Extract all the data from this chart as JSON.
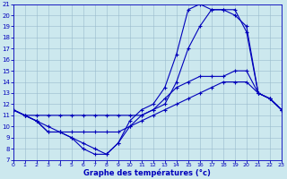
{
  "title": "Graphe des températures (°c)",
  "bg_color": "#cce8ee",
  "line_color": "#0000bb",
  "grid_color": "#99bbcc",
  "xlim": [
    0,
    23
  ],
  "ylim": [
    7,
    21
  ],
  "xticks": [
    0,
    1,
    2,
    3,
    4,
    5,
    6,
    7,
    8,
    9,
    10,
    11,
    12,
    13,
    14,
    15,
    16,
    17,
    18,
    19,
    20,
    21,
    22,
    23
  ],
  "yticks": [
    7,
    8,
    9,
    10,
    11,
    12,
    13,
    14,
    15,
    16,
    17,
    18,
    19,
    20,
    21
  ],
  "s1_x": [
    0,
    1,
    2,
    3,
    4,
    5,
    6,
    7,
    8,
    9,
    10,
    11,
    12,
    13,
    14,
    15,
    16,
    17,
    18,
    19,
    20,
    21,
    22,
    23
  ],
  "s1_y": [
    11.5,
    11.0,
    10.5,
    9.5,
    9.5,
    9.0,
    8.0,
    7.5,
    7.5,
    8.5,
    10.0,
    11.0,
    11.5,
    12.0,
    14.0,
    17.0,
    19.0,
    20.5,
    20.5,
    20.5,
    18.5,
    13.0,
    12.5,
    11.5
  ],
  "s2_x": [
    0,
    1,
    2,
    3,
    4,
    5,
    6,
    7,
    8,
    9,
    10,
    11,
    12,
    13,
    14,
    15,
    16,
    17,
    18,
    19,
    20,
    21,
    22,
    23
  ],
  "s2_y": [
    11.5,
    11.0,
    10.5,
    9.5,
    9.5,
    9.0,
    8.5,
    8.0,
    7.5,
    8.5,
    10.5,
    11.5,
    12.0,
    13.5,
    16.5,
    20.5,
    21.0,
    20.5,
    20.5,
    20.0,
    19.0,
    13.0,
    12.5,
    11.5
  ],
  "s3_x": [
    0,
    1,
    2,
    3,
    4,
    5,
    6,
    7,
    8,
    9,
    10,
    11,
    12,
    13,
    14,
    15,
    16,
    17,
    18,
    19,
    20,
    21,
    22,
    23
  ],
  "s3_y": [
    11.5,
    11.0,
    11.0,
    11.0,
    11.0,
    11.0,
    11.0,
    11.0,
    11.0,
    11.0,
    11.0,
    11.0,
    11.5,
    12.5,
    13.5,
    14.0,
    14.5,
    14.5,
    14.5,
    15.0,
    15.0,
    13.0,
    12.5,
    11.5
  ],
  "s4_x": [
    0,
    1,
    2,
    3,
    4,
    5,
    6,
    7,
    8,
    9,
    10,
    11,
    12,
    13,
    14,
    15,
    16,
    17,
    18,
    19,
    20,
    21,
    22,
    23
  ],
  "s4_y": [
    11.5,
    11.0,
    10.5,
    10.0,
    9.5,
    9.5,
    9.5,
    9.5,
    9.5,
    9.5,
    10.0,
    10.5,
    11.0,
    11.5,
    12.0,
    12.5,
    13.0,
    13.5,
    14.0,
    14.0,
    14.0,
    13.0,
    12.5,
    11.5
  ]
}
